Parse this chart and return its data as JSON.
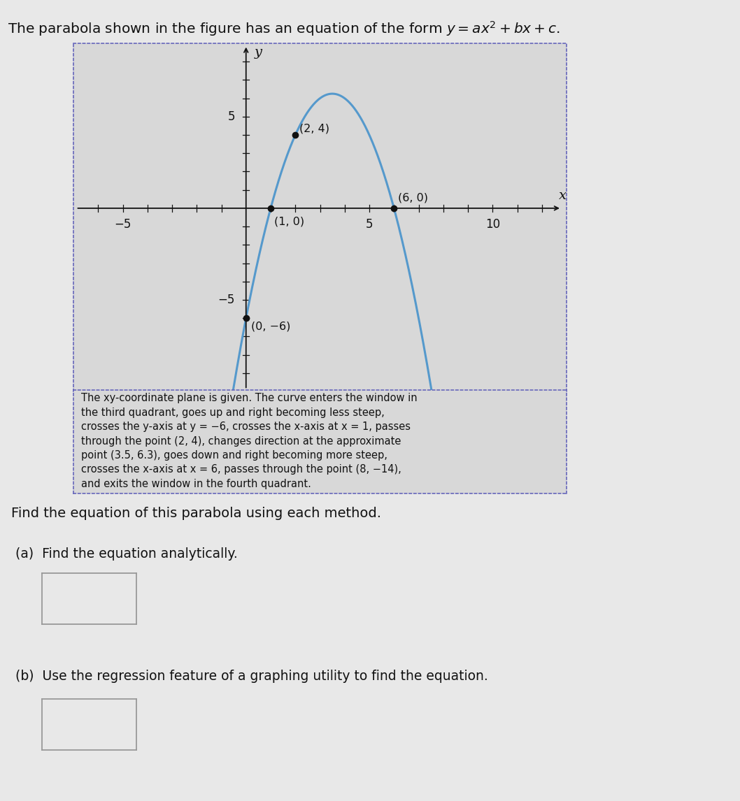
{
  "bg_color": "#e8e8e8",
  "plot_bg_color": "#d8d8d8",
  "curve_color": "#5599cc",
  "dot_color": "#111111",
  "axis_color": "#111111",
  "border_color": "#6666bb",
  "coeff_a": -1.0,
  "coeff_b": 7.0,
  "coeff_c": -6.0,
  "x_min": -7,
  "x_max": 13,
  "y_min": -10,
  "y_max": 9,
  "x_curve_start": -1.2,
  "x_curve_end": 9.0,
  "title_plain": "The parabola shown in the figure has an equation of the form ",
  "title_math": "y = ax² + bx + c.",
  "description_text": "The xy-coordinate plane is given. The curve enters the window in\nthe third quadrant, goes up and right becoming less steep,\ncrosses the y-axis at y = −6, crosses the x-axis at x = 1, passes\nthrough the point (2, 4), changes direction at the approximate\npoint (3.5, 6.3), goes down and right becoming more steep,\ncrosses the x-axis at x = 6, passes through the point (8, −14),\nand exits the window in the fourth quadrant.",
  "find_text": "Find the equation of this parabola using each method.",
  "part_a_label": "(a)",
  "part_a_text": "Find the equation analytically.",
  "part_b_label": "(b)",
  "part_b_text": "Use the regression feature of a graphing utility to find the equation."
}
